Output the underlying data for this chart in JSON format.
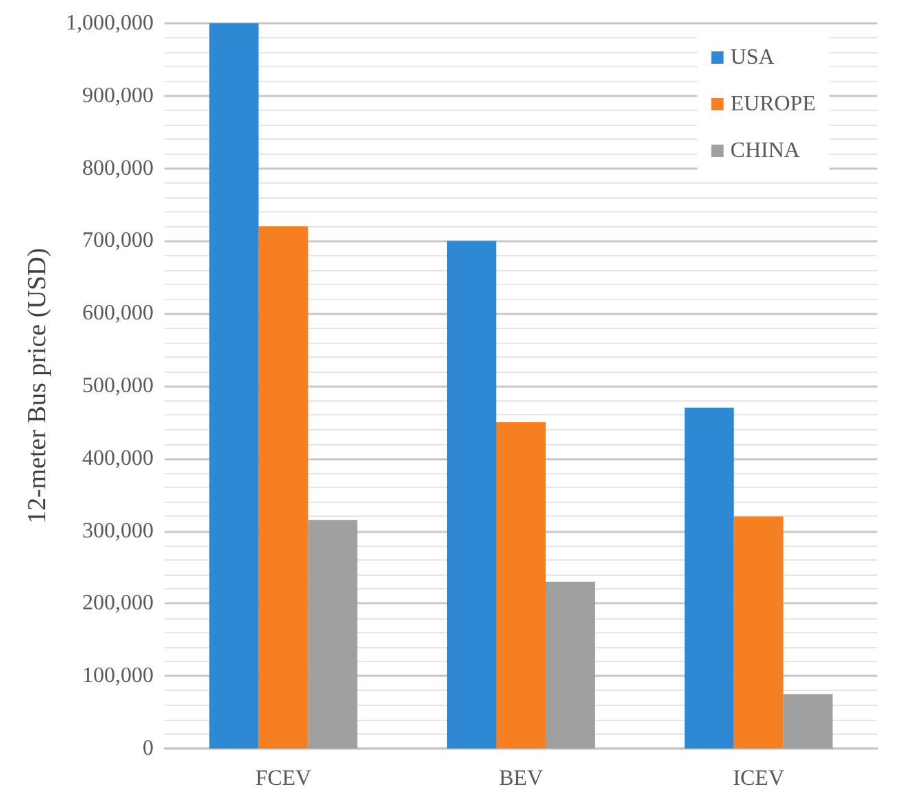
{
  "chart_data": {
    "type": "bar",
    "ylabel": "12-meter Bus price (USD)",
    "categories": [
      "FCEV",
      "BEV",
      "ICEV"
    ],
    "series": [
      {
        "name": "USA",
        "color": "#2e88d4",
        "values": [
          1000000,
          700000,
          470000
        ]
      },
      {
        "name": "EUROPE",
        "color": "#f67f22",
        "values": [
          720000,
          450000,
          320000
        ]
      },
      {
        "name": "CHINA",
        "color": "#a0a0a0",
        "values": [
          315000,
          230000,
          75000
        ]
      }
    ],
    "ylim": [
      0,
      1000000
    ],
    "yticks": [
      0,
      {
        "value": 100000,
        "label": "100,000"
      },
      {
        "value": 200000,
        "label": "200,000"
      },
      {
        "value": 300000,
        "label": "300,000"
      },
      {
        "value": 400000,
        "label": "400,000"
      },
      {
        "value": 500000,
        "label": "500,000"
      },
      {
        "value": 600000,
        "label": "600,000"
      },
      {
        "value": 700000,
        "label": "700,000"
      },
      {
        "value": 800000,
        "label": "800,000"
      },
      {
        "value": 900000,
        "label": "900,000"
      },
      {
        "value": 1000000,
        "label": "1,000,000"
      }
    ],
    "grid": "y",
    "legend": "top right"
  }
}
